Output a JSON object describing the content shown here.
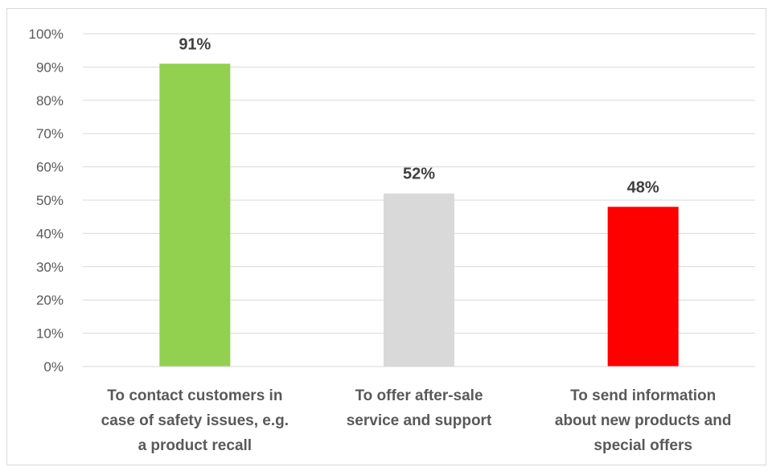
{
  "chart_data": {
    "type": "bar",
    "categories": [
      [
        "To contact customers in",
        "case of safety issues, e.g.",
        "a product recall"
      ],
      [
        "To offer after-sale",
        "service and support"
      ],
      [
        "To send information",
        "about new products and",
        "special offers"
      ]
    ],
    "values": [
      91,
      52,
      48
    ],
    "data_labels": [
      "91%",
      "52%",
      "48%"
    ],
    "bar_colors": [
      "#92d050",
      "#d9d9d9",
      "#ff0000"
    ],
    "ylim": [
      0,
      100
    ],
    "y_ticks": [
      0,
      10,
      20,
      30,
      40,
      50,
      60,
      70,
      80,
      90,
      100
    ],
    "y_tick_labels": [
      "0%",
      "10%",
      "20%",
      "30%",
      "40%",
      "50%",
      "60%",
      "70%",
      "80%",
      "90%",
      "100%"
    ],
    "grid": true,
    "legend": "none",
    "title": "",
    "xlabel": "",
    "ylabel": ""
  }
}
